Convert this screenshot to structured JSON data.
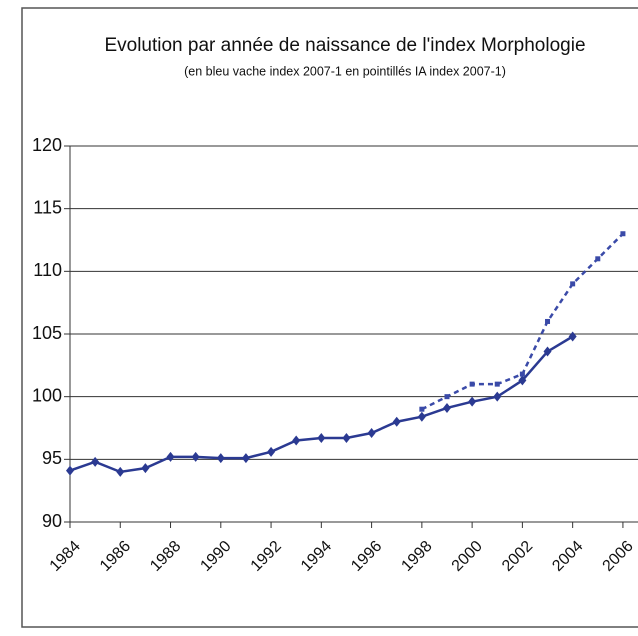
{
  "chart_data": {
    "type": "line",
    "title": "Evolution par année de naissance de l'index Morphologie",
    "subtitle": "(en bleu vache index 2007-1 en pointillés IA index 2007-1)",
    "x": [
      1984,
      1985,
      1986,
      1987,
      1988,
      1989,
      1990,
      1991,
      1992,
      1993,
      1994,
      1995,
      1996,
      1997,
      1998,
      1999,
      2000,
      2001,
      2002,
      2003,
      2004,
      2005,
      2006
    ],
    "series": [
      {
        "color": "#2b3a92",
        "style": "solid",
        "marker": "diamond",
        "values": [
          94.1,
          94.8,
          94.0,
          94.3,
          95.2,
          95.2,
          95.1,
          95.1,
          95.6,
          96.5,
          96.7,
          96.7,
          97.1,
          98.0,
          98.4,
          99.1,
          99.6,
          100.0,
          101.3,
          103.6,
          104.8,
          null,
          null
        ]
      },
      {
        "color": "#3a4aa8",
        "style": "dotted",
        "marker": "square",
        "values": [
          null,
          null,
          null,
          null,
          null,
          null,
          null,
          null,
          null,
          null,
          null,
          null,
          null,
          null,
          99.0,
          100.0,
          101.0,
          101.0,
          101.8,
          106.0,
          109.0,
          111.0,
          113.0
        ]
      }
    ],
    "xlim": [
      1984,
      2006.6
    ],
    "xticks": [
      1984,
      1986,
      1988,
      1990,
      1992,
      1994,
      1996,
      1998,
      2000,
      2002,
      2004,
      2006
    ],
    "ylim": [
      90,
      120
    ],
    "yticks": [
      90,
      95,
      100,
      105,
      110,
      115,
      120
    ],
    "grid": true
  }
}
